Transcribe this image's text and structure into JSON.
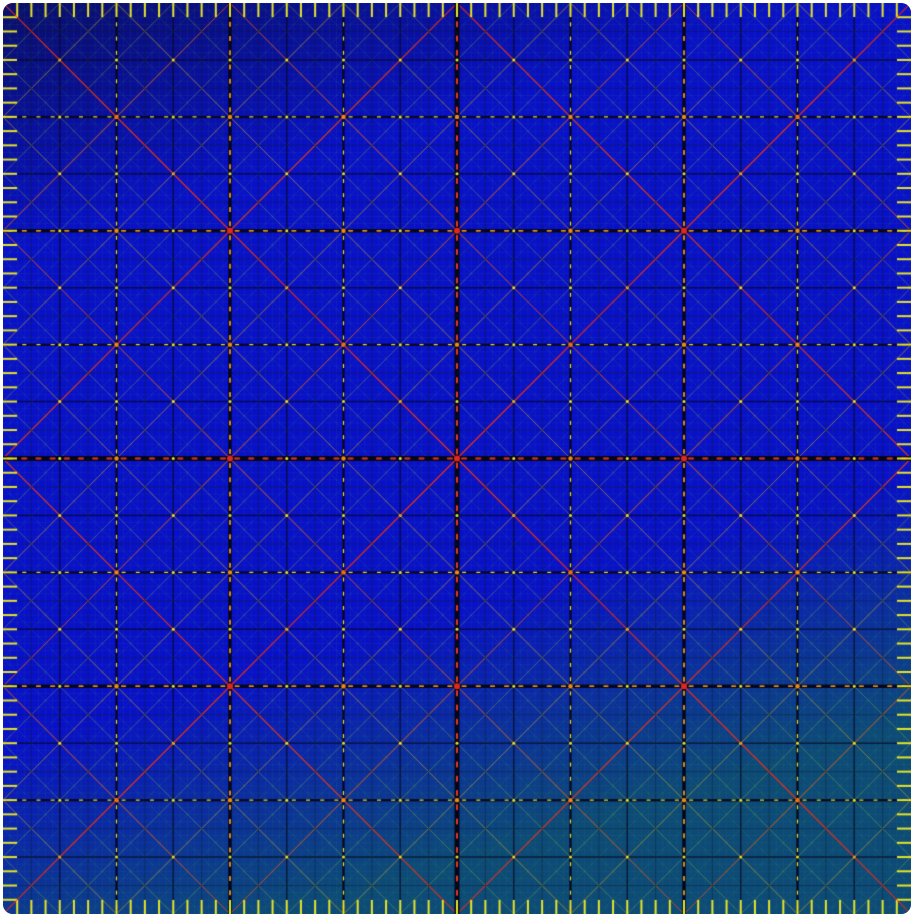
{
  "image": {
    "description_name": "fractal-lattice-pattern",
    "palette": {
      "background": "#0a10c8",
      "background_dark": "#0b0e6a",
      "shadow": "#05051a",
      "line_yellow": "#e6e628",
      "line_orange": "#f08c14",
      "line_red": "#e0281e",
      "line_green": "#3cc850",
      "teal_tint": "#0e4a78"
    },
    "symmetry": "fourfold",
    "subdivision_levels": [
      2,
      4,
      8,
      16,
      32,
      64
    ]
  }
}
